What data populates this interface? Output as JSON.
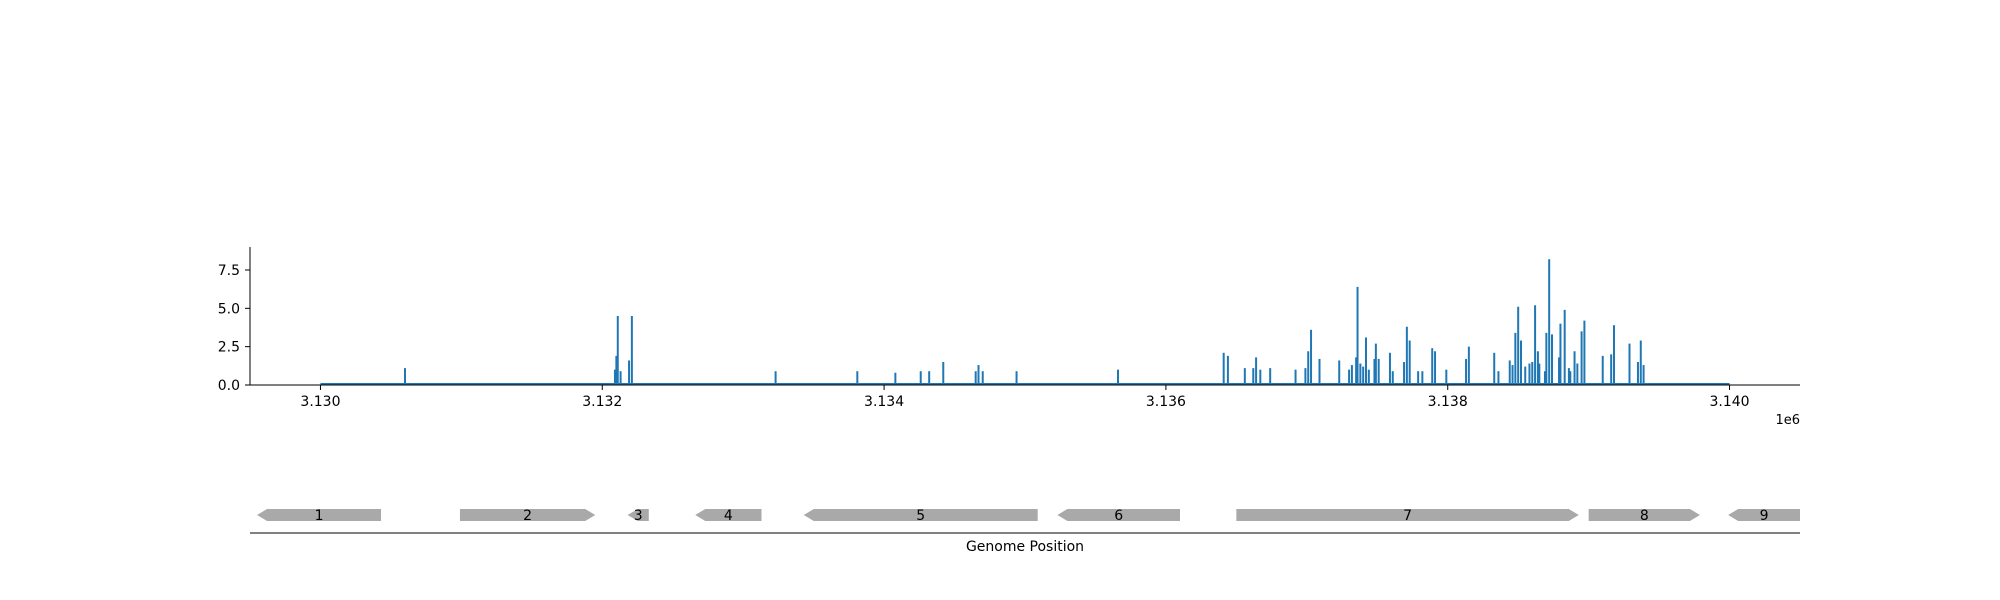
{
  "chart_data": {
    "type": "bar",
    "title": "",
    "xlabel": "",
    "ylabel": "",
    "xlim": [
      3129500,
      3140500
    ],
    "ylim": [
      0,
      9.0
    ],
    "x_ticks": [
      3130000,
      3132000,
      3134000,
      3136000,
      3138000,
      3140000
    ],
    "x_tick_labels": [
      "3.130",
      "3.132",
      "3.134",
      "3.136",
      "3.138",
      "3.140"
    ],
    "x_offset_label": "1e6",
    "y_ticks": [
      0.0,
      2.5,
      5.0,
      7.5
    ],
    "y_tick_labels": [
      "0.0",
      "2.5",
      "5.0",
      "7.5"
    ],
    "baseline_range": [
      3130000,
      3140000
    ],
    "color": "#1f77b4",
    "points": [
      [
        3130600,
        1.1
      ],
      [
        3132090,
        1.0
      ],
      [
        3132100,
        1.9
      ],
      [
        3132110,
        4.5
      ],
      [
        3132130,
        0.9
      ],
      [
        3132190,
        1.6
      ],
      [
        3132210,
        4.5
      ],
      [
        3133230,
        0.9
      ],
      [
        3133810,
        0.9
      ],
      [
        3134080,
        0.8
      ],
      [
        3134260,
        0.9
      ],
      [
        3134320,
        0.9
      ],
      [
        3134420,
        1.5
      ],
      [
        3134650,
        0.9
      ],
      [
        3134670,
        1.3
      ],
      [
        3134700,
        0.9
      ],
      [
        3134940,
        0.9
      ],
      [
        3135660,
        1.0
      ],
      [
        3136410,
        2.1
      ],
      [
        3136440,
        1.9
      ],
      [
        3136560,
        1.1
      ],
      [
        3136620,
        1.1
      ],
      [
        3136640,
        1.8
      ],
      [
        3136670,
        1.0
      ],
      [
        3136740,
        1.1
      ],
      [
        3136920,
        1.0
      ],
      [
        3136990,
        1.1
      ],
      [
        3137010,
        2.2
      ],
      [
        3137030,
        3.6
      ],
      [
        3137090,
        1.7
      ],
      [
        3137230,
        1.6
      ],
      [
        3137300,
        1.0
      ],
      [
        3137320,
        1.3
      ],
      [
        3137350,
        1.8
      ],
      [
        3137360,
        6.4
      ],
      [
        3137380,
        1.4
      ],
      [
        3137400,
        1.2
      ],
      [
        3137420,
        3.1
      ],
      [
        3137440,
        1.0
      ],
      [
        3137480,
        1.7
      ],
      [
        3137490,
        2.7
      ],
      [
        3137510,
        1.7
      ],
      [
        3137590,
        2.1
      ],
      [
        3137610,
        0.9
      ],
      [
        3137690,
        1.5
      ],
      [
        3137710,
        3.8
      ],
      [
        3137730,
        2.9
      ],
      [
        3137790,
        0.9
      ],
      [
        3137820,
        0.9
      ],
      [
        3137890,
        2.4
      ],
      [
        3137910,
        2.2
      ],
      [
        3137990,
        1.0
      ],
      [
        3138130,
        1.7
      ],
      [
        3138150,
        2.5
      ],
      [
        3138330,
        2.1
      ],
      [
        3138360,
        0.9
      ],
      [
        3138440,
        1.6
      ],
      [
        3138460,
        1.3
      ],
      [
        3138480,
        3.4
      ],
      [
        3138500,
        5.1
      ],
      [
        3138520,
        2.9
      ],
      [
        3138550,
        1.2
      ],
      [
        3138580,
        1.4
      ],
      [
        3138600,
        1.5
      ],
      [
        3138620,
        5.2
      ],
      [
        3138640,
        2.2
      ],
      [
        3138650,
        1.4
      ],
      [
        3138690,
        0.9
      ],
      [
        3138700,
        3.4
      ],
      [
        3138720,
        8.2
      ],
      [
        3138740,
        3.3
      ],
      [
        3138790,
        1.8
      ],
      [
        3138800,
        4.0
      ],
      [
        3138830,
        4.9
      ],
      [
        3138860,
        1.1
      ],
      [
        3138870,
        0.9
      ],
      [
        3138900,
        2.2
      ],
      [
        3138920,
        1.4
      ],
      [
        3138950,
        3.5
      ],
      [
        3138970,
        4.2
      ],
      [
        3139100,
        1.9
      ],
      [
        3139160,
        2.0
      ],
      [
        3139180,
        3.9
      ],
      [
        3139290,
        2.7
      ],
      [
        3139350,
        1.5
      ],
      [
        3139370,
        2.9
      ],
      [
        3139390,
        1.3
      ]
    ],
    "genes": [
      {
        "label": "1",
        "start": 3129550,
        "end": 3130430,
        "strand": -1
      },
      {
        "label": "2",
        "start": 3130990,
        "end": 3131950,
        "strand": 1
      },
      {
        "label": "3",
        "start": 3132180,
        "end": 3132330,
        "strand": -1
      },
      {
        "label": "4",
        "start": 3132660,
        "end": 3133130,
        "strand": -1
      },
      {
        "label": "5",
        "start": 3133430,
        "end": 3135090,
        "strand": -1
      },
      {
        "label": "6",
        "start": 3135230,
        "end": 3136100,
        "strand": -1
      },
      {
        "label": "7",
        "start": 3136500,
        "end": 3138930,
        "strand": 1
      },
      {
        "label": "8",
        "start": 3139000,
        "end": 3139790,
        "strand": 1
      },
      {
        "label": "9",
        "start": 3139990,
        "end": 3140500,
        "strand": -1
      }
    ],
    "gene_axis_label": "Genome Position"
  }
}
